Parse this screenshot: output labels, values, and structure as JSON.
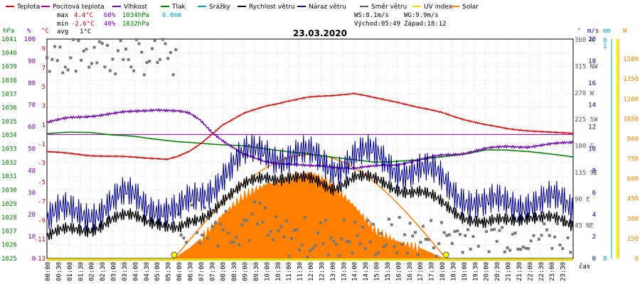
{
  "header": {
    "legend": [
      {
        "label": "Teplota",
        "color": "#dd0000"
      },
      {
        "label": "Pocitová teplota",
        "color": "#a000a0"
      },
      {
        "label": "Vlhkost",
        "color": "#7000b0"
      },
      {
        "label": "Tlak",
        "color": "#008000"
      },
      {
        "label": "Srážky",
        "color": "#00a0c0"
      },
      {
        "label": "Rychlost větru",
        "color": "#000000"
      },
      {
        "label": "Náraz větru",
        "color": "#000090"
      },
      {
        "label": "Směr větru",
        "color": "#555555"
      },
      {
        "label": "UV index",
        "color": "#e8d800"
      },
      {
        "label": "Solar",
        "color": "#ff8000"
      }
    ],
    "stats": {
      "max_label": "max",
      "max_temp": "4.4°C",
      "max_hum": "68%",
      "max_press": "1034hPa",
      "rain": "0.0mm",
      "min_label": "min",
      "min_temp": "-2.6°C",
      "min_hum": "40%",
      "min_press": "1032hPa",
      "avg_label": "avg",
      "avg_temp": "1°C"
    },
    "wind_info": {
      "ws": "WS:8.1m/s",
      "wg": "WG:9.9m/s",
      "sunrise": "Východ:05:49",
      "sunset": "Západ:18:12"
    },
    "date": "23.03.2020"
  },
  "axes": {
    "unit_hpa": "hPa",
    "unit_pct": "%",
    "unit_c": "°C",
    "unit_deg": "°",
    "unit_ms": "m/s",
    "unit_mm": "mm",
    "unit_w": "W",
    "x_unit": "čas",
    "hpa_ticks": [
      "1041",
      "1040",
      "1039",
      "1038",
      "1037",
      "1036",
      "1035",
      "1034",
      "1033",
      "1032",
      "1031",
      "1030",
      "1029",
      "1028",
      "1027",
      "1026",
      "1025"
    ],
    "pct_ticks": [
      "100",
      "90",
      "80",
      "70",
      "60",
      "50",
      "40",
      "30",
      "20",
      "10",
      "0"
    ],
    "c_ticks": [
      "9",
      "7",
      "5",
      "3",
      "1",
      "-1",
      "-3",
      "-5",
      "-7",
      "-9",
      "-11",
      "-13"
    ],
    "dir_ticks": [
      "360 N",
      "315 NW",
      "270 W",
      "225 SW",
      "180 S",
      "135 SE",
      "90 E",
      "45 NE"
    ],
    "ms_ticks": [
      "20",
      "18",
      "16",
      "14",
      "12",
      "10",
      "8",
      "6",
      "4",
      "2",
      "0"
    ],
    "mm_ticks": [
      "0",
      "1",
      "0"
    ],
    "w_ticks": [
      "1500",
      "1350",
      "1200",
      "1050",
      "900",
      "750",
      "600",
      "450",
      "300",
      "150",
      "0"
    ],
    "time_ticks": [
      "00:00",
      "00:30",
      "01:00",
      "01:30",
      "02:00",
      "02:30",
      "03:00",
      "03:30",
      "04:00",
      "04:30",
      "05:00",
      "05:30",
      "06:00",
      "06:30",
      "07:00",
      "07:30",
      "08:00",
      "08:30",
      "09:00",
      "09:30",
      "10:00",
      "10:30",
      "11:00",
      "11:30",
      "12:00",
      "12:30",
      "13:00",
      "13:30",
      "14:00",
      "14:30",
      "15:00",
      "15:30",
      "16:00",
      "16:30",
      "17:00",
      "17:30",
      "18:00",
      "18:30",
      "19:00",
      "19:30",
      "20:00",
      "20:30",
      "21:00",
      "21:30",
      "22:00",
      "22:30",
      "23:00",
      "23:30"
    ]
  },
  "chart_data": {
    "type": "line",
    "x_unit": "hours",
    "temperature_c": {
      "x": [
        0,
        1,
        2,
        3,
        4,
        5,
        5.5,
        6,
        6.5,
        7,
        7.5,
        8,
        9,
        10,
        11,
        12,
        13,
        14,
        15,
        16,
        17,
        18,
        19,
        20,
        21,
        22,
        23,
        24
      ],
      "y": [
        -1.8,
        -2.0,
        -2.2,
        -2.3,
        -2.4,
        -2.5,
        -2.6,
        -2.3,
        -1.8,
        -1.0,
        0,
        1.0,
        2.2,
        3.0,
        3.5,
        3.9,
        4.1,
        4.3,
        3.8,
        3.4,
        2.8,
        2.3,
        1.6,
        1.0,
        0.6,
        0.4,
        0.2,
        0.1
      ]
    },
    "humidity_pct": {
      "x": [
        0,
        1,
        2,
        3,
        4,
        5,
        6,
        6.5,
        7,
        7.5,
        8,
        9,
        10,
        11,
        12,
        13,
        14,
        15,
        16,
        17,
        18,
        19,
        20,
        21,
        22,
        23,
        24
      ],
      "y": [
        62,
        64,
        65,
        66,
        67,
        68,
        67,
        66,
        63,
        58,
        54,
        47,
        44,
        43,
        42,
        42,
        41,
        42,
        43,
        45,
        47,
        48,
        50,
        51,
        51,
        52,
        53
      ]
    },
    "pressure_hpa": {
      "x": [
        0,
        1,
        2,
        3,
        4,
        5,
        6,
        7,
        8,
        9,
        10,
        11,
        12,
        13,
        14,
        15,
        16,
        17,
        18,
        19,
        20,
        21,
        22,
        23,
        24
      ],
      "y": [
        1034.1,
        1034.2,
        1034.2,
        1034.0,
        1033.9,
        1033.7,
        1033.5,
        1033.4,
        1033.3,
        1033.2,
        1033.0,
        1032.8,
        1032.6,
        1032.4,
        1032.2,
        1032.0,
        1032.1,
        1032.2,
        1032.4,
        1032.6,
        1032.9,
        1032.9,
        1032.8,
        1032.6,
        1032.4
      ]
    },
    "wind_speed_ms": {
      "x": [
        0,
        1,
        2,
        3,
        4,
        5,
        6,
        7,
        8,
        9,
        10,
        11,
        12,
        13,
        14,
        15,
        16,
        17,
        18,
        19,
        20,
        21,
        22,
        23,
        24
      ],
      "y": [
        2.0,
        2.5,
        2.8,
        3.5,
        3.8,
        3.5,
        2.5,
        3.5,
        5.5,
        6.5,
        7.5,
        7.5,
        7.0,
        6.5,
        7.5,
        7.0,
        6.5,
        6.0,
        5.0,
        4.0,
        3.0,
        3.5,
        4.0,
        3.5,
        3.0
      ]
    },
    "wind_gust_ms": {
      "x": [
        0,
        1,
        2,
        3,
        4,
        5,
        6,
        7,
        8,
        9,
        10,
        11,
        12,
        13,
        14,
        15,
        16,
        17,
        18,
        19,
        20,
        21,
        22,
        23,
        24
      ],
      "y": [
        3.5,
        4.0,
        4.5,
        5.0,
        5.5,
        5.0,
        4.0,
        5.5,
        8.0,
        9.0,
        9.9,
        9.5,
        9.0,
        8.5,
        9.5,
        9.0,
        8.5,
        8.0,
        7.0,
        6.0,
        4.5,
        5.0,
        5.5,
        5.0,
        4.5
      ]
    },
    "wind_dir_deg_ticks_hint": "scatter 0-360",
    "solar_wm2": {
      "x": [
        5.8,
        6.5,
        7,
        8,
        9,
        10,
        11,
        12,
        12.5,
        13,
        14,
        15,
        16,
        17,
        18,
        18.2
      ],
      "y": [
        0,
        80,
        150,
        330,
        480,
        560,
        600,
        650,
        610,
        560,
        400,
        210,
        130,
        80,
        10,
        0
      ]
    },
    "solar_theoretical_wm2": {
      "x": [
        5.8,
        7,
        9,
        11,
        12,
        13,
        15,
        17,
        18.2
      ],
      "y": [
        0,
        250,
        580,
        760,
        780,
        760,
        580,
        250,
        0
      ]
    },
    "uv_index": {
      "x": [
        5.8,
        18.2
      ],
      "y": [
        0,
        0
      ]
    },
    "rain_mm": {
      "x": [
        0,
        24
      ],
      "y": [
        0,
        0
      ]
    },
    "axes_ranges": {
      "temperature_c": [
        -13,
        10
      ],
      "humidity_pct": [
        0,
        100
      ],
      "pressure_hpa": [
        1025,
        1041
      ],
      "wind_ms": [
        0,
        20
      ],
      "solar_wm2": [
        0,
        1650
      ],
      "wind_dir_deg": [
        0,
        360
      ]
    }
  }
}
